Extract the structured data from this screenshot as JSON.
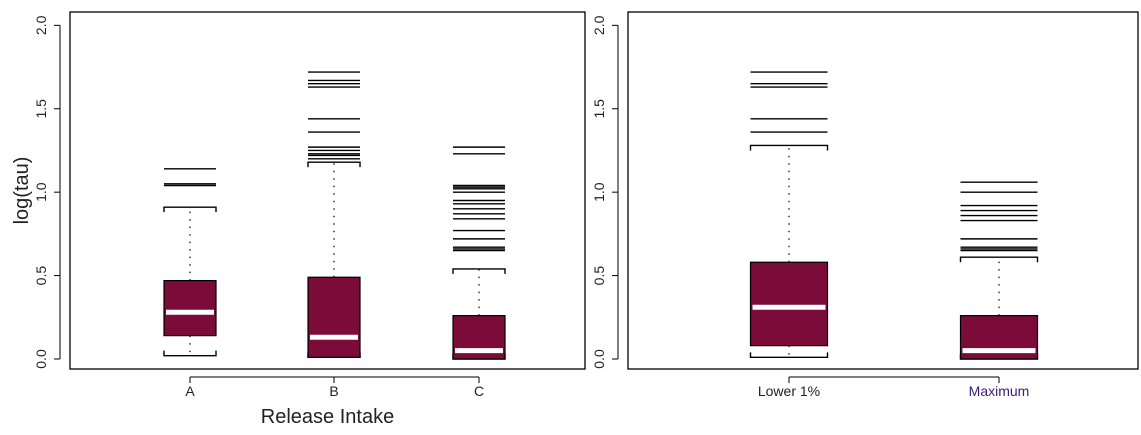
{
  "colors": {
    "box_fill": "#7B0C3A",
    "median": "#ffffff",
    "line": "#000000",
    "maximum_label": "#3a1a78"
  },
  "chart_data": [
    {
      "type": "boxplot",
      "ylabel": "log(tau)",
      "xlabel": "Release Intake",
      "ylim": [
        -0.06,
        2.08
      ],
      "yticks": [
        "0.0",
        "0.5",
        "1.0",
        "1.5",
        "2.0"
      ],
      "categories": [
        "A",
        "B",
        "C"
      ],
      "boxes": [
        {
          "name": "A",
          "whisker_low": 0.02,
          "q1": 0.14,
          "median": 0.28,
          "q3": 0.47,
          "whisker_high": 0.91,
          "outliers": [
            1.04,
            1.05,
            1.14
          ]
        },
        {
          "name": "B",
          "whisker_low": 0.01,
          "q1": 0.01,
          "median": 0.13,
          "q3": 0.49,
          "whisker_high": 1.18,
          "outliers": [
            1.2,
            1.22,
            1.23,
            1.25,
            1.27,
            1.36,
            1.44,
            1.63,
            1.65,
            1.67,
            1.72
          ]
        },
        {
          "name": "C",
          "whisker_low": 0.0,
          "q1": 0.0,
          "median": 0.05,
          "q3": 0.26,
          "whisker_high": 0.54,
          "outliers": [
            0.65,
            0.66,
            0.67,
            0.72,
            0.77,
            0.84,
            0.87,
            0.9,
            0.93,
            0.95,
            1.0,
            1.02,
            1.03,
            1.04,
            1.23,
            1.27
          ]
        }
      ]
    },
    {
      "type": "boxplot",
      "ylim": [
        -0.06,
        2.08
      ],
      "yticks": [
        "0.0",
        "0.5",
        "1.0",
        "1.5",
        "2.0"
      ],
      "categories": [
        "Lower 1%",
        "Maximum"
      ],
      "boxes": [
        {
          "name": "Lower 1%",
          "whisker_low": 0.01,
          "q1": 0.08,
          "median": 0.31,
          "q3": 0.58,
          "whisker_high": 1.28,
          "outliers": [
            1.36,
            1.44,
            1.63,
            1.65,
            1.72
          ]
        },
        {
          "name": "Maximum",
          "whisker_low": 0.0,
          "q1": 0.0,
          "median": 0.05,
          "q3": 0.26,
          "whisker_high": 0.61,
          "outliers": [
            0.65,
            0.66,
            0.67,
            0.72,
            0.83,
            0.86,
            0.89,
            0.92,
            1.0,
            1.06
          ]
        }
      ]
    }
  ]
}
